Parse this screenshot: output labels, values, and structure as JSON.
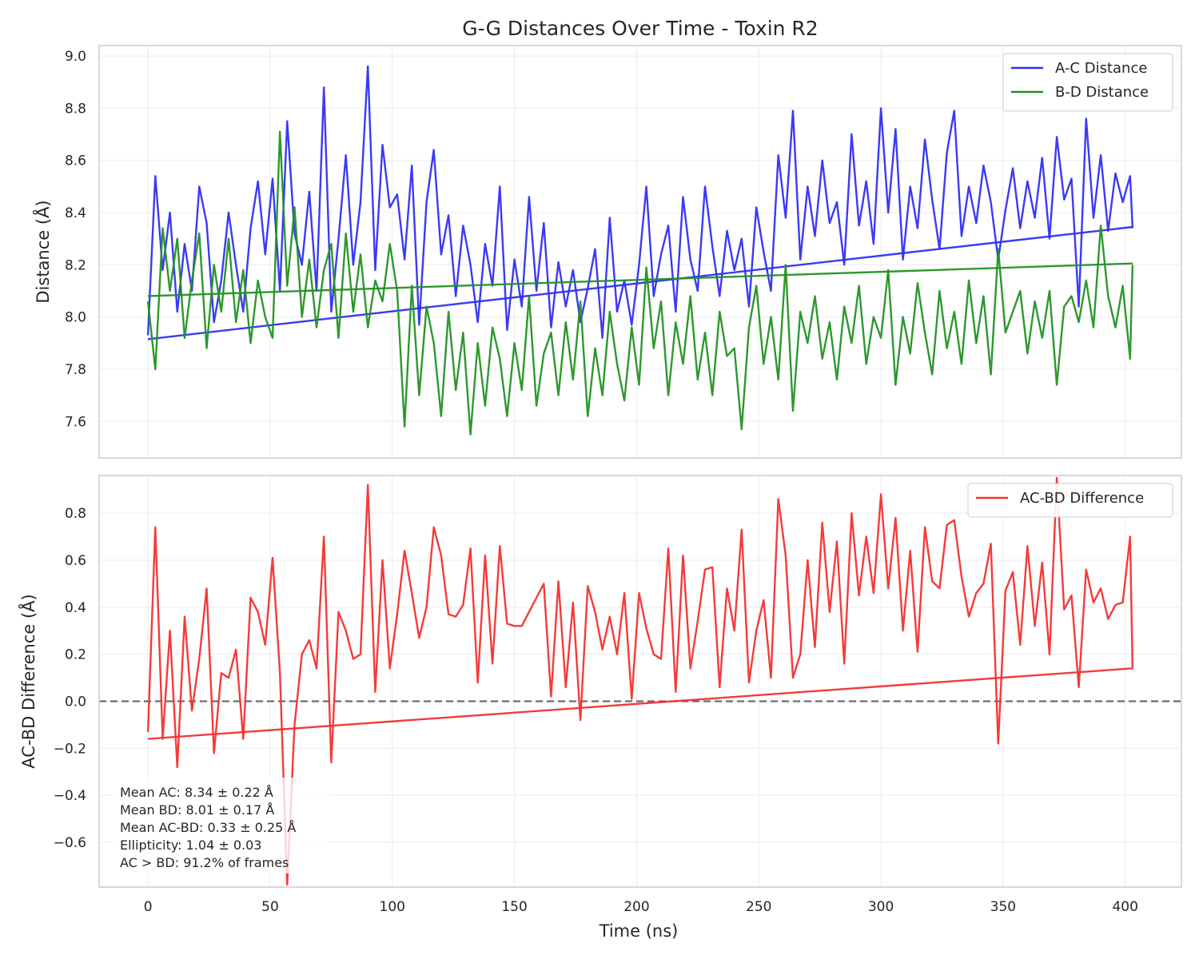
{
  "chart_data": [
    {
      "type": "line",
      "title": "G-G Distances Over Time - Toxin R2",
      "xlabel": "",
      "ylabel": "Distance (Å)",
      "xlim": [
        -20,
        423
      ],
      "ylim": [
        7.46,
        9.04
      ],
      "x_ticks": [
        0,
        50,
        100,
        150,
        200,
        250,
        300,
        350,
        400
      ],
      "y_ticks": [
        7.6,
        7.8,
        8.0,
        8.2,
        8.4,
        8.6,
        8.8,
        9.0
      ],
      "y_tick_labels": [
        "7.6",
        "7.8",
        "8.0",
        "8.2",
        "8.4",
        "8.6",
        "8.8",
        "9.0"
      ],
      "grid": true,
      "legend_position": "top-right",
      "series": [
        {
          "name": "A-C Distance",
          "color": "#2f2ff5",
          "x": [
            0,
            3,
            6,
            9,
            12,
            15,
            18,
            21,
            24,
            27,
            30,
            33,
            36,
            39,
            42,
            45,
            48,
            51,
            54,
            57,
            60,
            63,
            66,
            69,
            72,
            75,
            78,
            81,
            84,
            87,
            90,
            93,
            96,
            99,
            102,
            105,
            108,
            111,
            114,
            117,
            120,
            123,
            126,
            129,
            132,
            135,
            138,
            141,
            144,
            147,
            150,
            153,
            156,
            159,
            162,
            165,
            168,
            171,
            174,
            177,
            180,
            183,
            186,
            189,
            192,
            195,
            198,
            201,
            204,
            207,
            210,
            213,
            216,
            219,
            222,
            225,
            228,
            231,
            234,
            237,
            240,
            243,
            246,
            249,
            252,
            255,
            258,
            261,
            264,
            267,
            270,
            273,
            276,
            279,
            282,
            285,
            288,
            291,
            294,
            297,
            300,
            303,
            306,
            309,
            312,
            315,
            318,
            321,
            324,
            327,
            330,
            333,
            336,
            339,
            342,
            345,
            348,
            351,
            354,
            357,
            360,
            363,
            366,
            369,
            372,
            375,
            378,
            381,
            384,
            387,
            390,
            393,
            396,
            399,
            402,
            403
          ],
          "values": [
            7.93,
            8.54,
            8.18,
            8.4,
            8.02,
            8.28,
            8.1,
            8.5,
            8.36,
            7.98,
            8.14,
            8.4,
            8.2,
            8.02,
            8.34,
            8.52,
            8.24,
            8.53,
            8.1,
            8.75,
            8.32,
            8.2,
            8.48,
            8.1,
            8.88,
            8.02,
            8.3,
            8.62,
            8.2,
            8.44,
            8.96,
            8.18,
            8.66,
            8.42,
            8.47,
            8.22,
            8.58,
            7.97,
            8.44,
            8.64,
            8.24,
            8.39,
            8.08,
            8.35,
            8.2,
            7.98,
            8.28,
            8.12,
            8.5,
            7.95,
            8.22,
            8.04,
            8.46,
            8.1,
            8.36,
            7.96,
            8.21,
            8.04,
            8.18,
            7.98,
            8.11,
            8.26,
            7.92,
            8.38,
            8.02,
            8.14,
            7.97,
            8.2,
            8.5,
            8.08,
            8.24,
            8.35,
            8.02,
            8.46,
            8.22,
            8.1,
            8.5,
            8.27,
            8.08,
            8.33,
            8.18,
            8.3,
            8.04,
            8.42,
            8.25,
            8.1,
            8.62,
            8.38,
            8.79,
            8.22,
            8.5,
            8.31,
            8.6,
            8.36,
            8.44,
            8.2,
            8.7,
            8.35,
            8.52,
            8.28,
            8.8,
            8.4,
            8.72,
            8.22,
            8.5,
            8.34,
            8.68,
            8.45,
            8.26,
            8.63,
            8.79,
            8.31,
            8.5,
            8.36,
            8.58,
            8.44,
            8.22,
            8.41,
            8.57,
            8.34,
            8.52,
            8.38,
            8.61,
            8.3,
            8.69,
            8.45,
            8.53,
            8.04,
            8.76,
            8.38,
            8.62,
            8.33,
            8.55,
            8.44,
            8.54,
            8.34
          ]
        },
        {
          "name": "",
          "color": "#2f2ff5",
          "x": [
            0,
            403
          ],
          "values": [
            7.915,
            8.345
          ]
        },
        {
          "name": "B-D Distance",
          "color": "#229222",
          "x": [
            0,
            3,
            6,
            9,
            12,
            15,
            18,
            21,
            24,
            27,
            30,
            33,
            36,
            39,
            42,
            45,
            48,
            51,
            54,
            57,
            60,
            63,
            66,
            69,
            72,
            75,
            78,
            81,
            84,
            87,
            90,
            93,
            96,
            99,
            102,
            105,
            108,
            111,
            114,
            117,
            120,
            123,
            126,
            129,
            132,
            135,
            138,
            141,
            144,
            147,
            150,
            153,
            156,
            159,
            162,
            165,
            168,
            171,
            174,
            177,
            180,
            183,
            186,
            189,
            192,
            195,
            198,
            201,
            204,
            207,
            210,
            213,
            216,
            219,
            222,
            225,
            228,
            231,
            234,
            237,
            240,
            243,
            246,
            249,
            252,
            255,
            258,
            261,
            264,
            267,
            270,
            273,
            276,
            279,
            282,
            285,
            288,
            291,
            294,
            297,
            300,
            303,
            306,
            309,
            312,
            315,
            318,
            321,
            324,
            327,
            330,
            333,
            336,
            339,
            342,
            345,
            348,
            351,
            354,
            357,
            360,
            363,
            366,
            369,
            372,
            375,
            378,
            381,
            384,
            387,
            390,
            393,
            396,
            399,
            402,
            403
          ],
          "values": [
            8.06,
            7.8,
            8.34,
            8.1,
            8.3,
            7.92,
            8.14,
            8.32,
            7.88,
            8.2,
            8.02,
            8.3,
            7.98,
            8.18,
            7.9,
            8.14,
            8.0,
            7.92,
            8.71,
            8.12,
            8.42,
            8.0,
            8.22,
            7.96,
            8.18,
            8.28,
            7.92,
            8.32,
            8.02,
            8.24,
            7.96,
            8.14,
            8.06,
            8.28,
            8.1,
            7.58,
            8.12,
            7.7,
            8.04,
            7.9,
            7.62,
            8.02,
            7.72,
            7.94,
            7.55,
            7.9,
            7.66,
            7.96,
            7.84,
            7.62,
            7.9,
            7.72,
            8.08,
            7.66,
            7.86,
            7.94,
            7.7,
            7.98,
            7.76,
            8.06,
            7.62,
            7.88,
            7.7,
            8.02,
            7.82,
            7.68,
            7.96,
            7.74,
            8.19,
            7.88,
            8.06,
            7.7,
            7.98,
            7.82,
            8.08,
            7.76,
            7.94,
            7.7,
            8.02,
            7.85,
            7.88,
            7.57,
            7.96,
            8.12,
            7.82,
            8.0,
            7.76,
            8.2,
            7.64,
            8.02,
            7.9,
            8.08,
            7.84,
            7.98,
            7.76,
            8.04,
            7.9,
            8.12,
            7.82,
            8.0,
            7.92,
            8.18,
            7.74,
            8.0,
            7.86,
            8.13,
            7.94,
            7.78,
            8.1,
            7.88,
            8.02,
            7.82,
            8.14,
            7.9,
            8.08,
            7.78,
            8.26,
            7.94,
            8.02,
            8.1,
            7.86,
            8.06,
            7.92,
            8.1,
            7.74,
            8.04,
            8.08,
            7.98,
            8.14,
            7.96,
            8.35,
            8.08,
            7.96,
            8.12,
            7.84,
            8.2
          ]
        },
        {
          "name": "",
          "color": "#229222",
          "x": [
            0,
            403
          ],
          "values": [
            8.08,
            8.205
          ]
        }
      ]
    },
    {
      "type": "line",
      "title": "",
      "xlabel": "Time (ns)",
      "ylabel": "AC-BD Difference (Å)",
      "xlim": [
        -20,
        423
      ],
      "ylim": [
        -0.79,
        0.96
      ],
      "x_ticks": [
        0,
        50,
        100,
        150,
        200,
        250,
        300,
        350,
        400
      ],
      "x_tick_labels": [
        "0",
        "50",
        "100",
        "150",
        "200",
        "250",
        "300",
        "350",
        "400"
      ],
      "y_ticks": [
        -0.6,
        -0.4,
        -0.2,
        0.0,
        0.2,
        0.4,
        0.6,
        0.8
      ],
      "y_tick_labels": [
        "−0.6",
        "−0.4",
        "−0.2",
        "0.0",
        "0.2",
        "0.4",
        "0.6",
        "0.8"
      ],
      "grid": true,
      "legend_position": "top-right",
      "reference_line": 0,
      "series": [
        {
          "name": "AC-BD Difference",
          "color": "#f42f2f",
          "x": [
            0,
            3,
            6,
            9,
            12,
            15,
            18,
            21,
            24,
            27,
            30,
            33,
            36,
            39,
            42,
            45,
            48,
            51,
            54,
            57,
            60,
            63,
            66,
            69,
            72,
            75,
            78,
            81,
            84,
            87,
            90,
            93,
            96,
            99,
            102,
            105,
            108,
            111,
            114,
            117,
            120,
            123,
            126,
            129,
            132,
            135,
            138,
            141,
            144,
            147,
            150,
            153,
            156,
            159,
            162,
            165,
            168,
            171,
            174,
            177,
            180,
            183,
            186,
            189,
            192,
            195,
            198,
            201,
            204,
            207,
            210,
            213,
            216,
            219,
            222,
            225,
            228,
            231,
            234,
            237,
            240,
            243,
            246,
            249,
            252,
            255,
            258,
            261,
            264,
            267,
            270,
            273,
            276,
            279,
            282,
            285,
            288,
            291,
            294,
            297,
            300,
            303,
            306,
            309,
            312,
            315,
            318,
            321,
            324,
            327,
            330,
            333,
            336,
            339,
            342,
            345,
            348,
            351,
            354,
            357,
            360,
            363,
            366,
            369,
            372,
            375,
            378,
            381,
            384,
            387,
            390,
            393,
            396,
            399,
            402,
            403
          ],
          "values": [
            -0.13,
            0.74,
            -0.16,
            0.3,
            -0.28,
            0.36,
            -0.04,
            0.18,
            0.48,
            -0.22,
            0.12,
            0.1,
            0.22,
            -0.16,
            0.44,
            0.38,
            0.24,
            0.61,
            0.12,
            -0.78,
            -0.1,
            0.2,
            0.26,
            0.14,
            0.7,
            -0.26,
            0.38,
            0.3,
            0.18,
            0.2,
            0.92,
            0.04,
            0.6,
            0.14,
            0.37,
            0.64,
            0.46,
            0.27,
            0.4,
            0.74,
            0.62,
            0.37,
            0.36,
            0.41,
            0.65,
            0.08,
            0.62,
            0.16,
            0.66,
            0.33,
            0.32,
            0.32,
            0.38,
            0.44,
            0.5,
            0.02,
            0.51,
            0.06,
            0.42,
            -0.08,
            0.49,
            0.38,
            0.22,
            0.36,
            0.2,
            0.46,
            0.01,
            0.46,
            0.31,
            0.2,
            0.18,
            0.65,
            0.04,
            0.62,
            0.14,
            0.34,
            0.56,
            0.57,
            0.06,
            0.48,
            0.3,
            0.73,
            0.08,
            0.3,
            0.43,
            0.1,
            0.86,
            0.62,
            0.1,
            0.2,
            0.6,
            0.23,
            0.76,
            0.38,
            0.68,
            0.16,
            0.8,
            0.45,
            0.7,
            0.46,
            0.88,
            0.48,
            0.78,
            0.3,
            0.64,
            0.21,
            0.74,
            0.51,
            0.48,
            0.75,
            0.77,
            0.53,
            0.36,
            0.46,
            0.5,
            0.67,
            -0.18,
            0.47,
            0.55,
            0.24,
            0.66,
            0.32,
            0.59,
            0.2,
            0.95,
            0.39,
            0.45,
            0.06,
            0.56,
            0.42,
            0.48,
            0.35,
            0.41,
            0.42,
            0.7,
            0.14
          ]
        },
        {
          "name": "",
          "color": "#f42f2f",
          "x": [
            0,
            403
          ],
          "values": [
            -0.16,
            0.14
          ]
        }
      ],
      "annotations": [
        "Mean AC: 8.34 ± 0.22 Å",
        "Mean BD: 8.01 ± 0.17 Å",
        "Mean AC-BD: 0.33 ± 0.25 Å",
        "Ellipticity: 1.04 ± 0.03",
        "AC > BD: 91.2% of frames"
      ]
    }
  ]
}
